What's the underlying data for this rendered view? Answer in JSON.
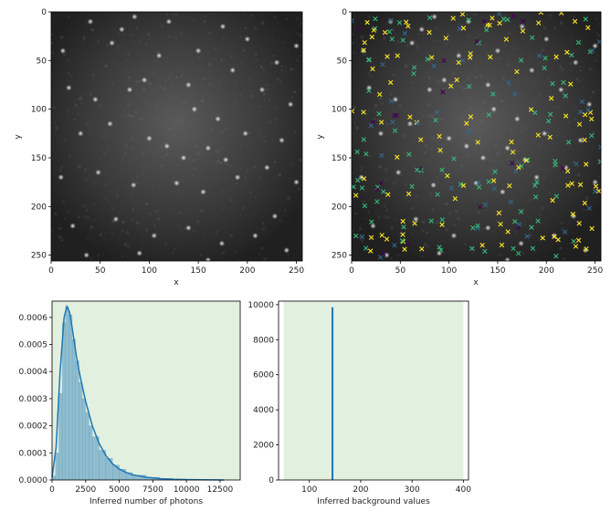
{
  "chart_data": [
    {
      "type": "heatmap",
      "description_id": "microscopy-frame",
      "xlabel": "x",
      "ylabel": "y",
      "xlim": [
        0,
        256
      ],
      "ylim": [
        256,
        0
      ],
      "xticks": [
        "0",
        "50",
        "100",
        "150",
        "200",
        "250"
      ],
      "yticks": [
        "0",
        "50",
        "100",
        "150",
        "200",
        "250"
      ],
      "colormap": "gray",
      "spots": [
        [
          40,
          10
        ],
        [
          62,
          32
        ],
        [
          72,
          18
        ],
        [
          85,
          5
        ],
        [
          110,
          45
        ],
        [
          150,
          40
        ],
        [
          185,
          60
        ],
        [
          200,
          28
        ],
        [
          230,
          52
        ],
        [
          250,
          35
        ],
        [
          18,
          78
        ],
        [
          45,
          90
        ],
        [
          80,
          80
        ],
        [
          95,
          70
        ],
        [
          140,
          75
        ],
        [
          146,
          100
        ],
        [
          170,
          110
        ],
        [
          215,
          80
        ],
        [
          244,
          95
        ],
        [
          30,
          125
        ],
        [
          60,
          115
        ],
        [
          100,
          130
        ],
        [
          118,
          138
        ],
        [
          135,
          150
        ],
        [
          160,
          140
        ],
        [
          178,
          152
        ],
        [
          198,
          125
        ],
        [
          235,
          132
        ],
        [
          10,
          170
        ],
        [
          48,
          165
        ],
        [
          84,
          178
        ],
        [
          128,
          176
        ],
        [
          155,
          185
        ],
        [
          190,
          170
        ],
        [
          220,
          160
        ],
        [
          250,
          175
        ],
        [
          22,
          220
        ],
        [
          66,
          213
        ],
        [
          105,
          230
        ],
        [
          140,
          222
        ],
        [
          174,
          238
        ],
        [
          208,
          230
        ],
        [
          240,
          245
        ],
        [
          36,
          250
        ],
        [
          90,
          248
        ],
        [
          160,
          255
        ],
        [
          120,
          10
        ],
        [
          12,
          40
        ],
        [
          175,
          15
        ],
        [
          228,
          210
        ]
      ]
    },
    {
      "type": "scatter",
      "description_id": "microscopy-frame-with-detections",
      "xlabel": "x",
      "ylabel": "y",
      "xlim": [
        0,
        256
      ],
      "ylim": [
        256,
        0
      ],
      "xticks": [
        "0",
        "50",
        "100",
        "150",
        "200",
        "250"
      ],
      "yticks": [
        "0",
        "50",
        "100",
        "150",
        "200",
        "250"
      ],
      "marker": "x",
      "colors": [
        "#fde725",
        "#35b779",
        "#31688e",
        "#440154"
      ],
      "point_count": 260
    },
    {
      "type": "bar",
      "description_id": "photon-histogram",
      "xlabel": "Inferred number of photons",
      "xlim": [
        0,
        14000
      ],
      "ylim": [
        0,
        0.00066
      ],
      "xticks": [
        "0",
        "2500",
        "5000",
        "7500",
        "10000",
        "12500"
      ],
      "yticks": [
        "0.0000",
        "0.0001",
        "0.0002",
        "0.0003",
        "0.0004",
        "0.0005",
        "0.0006"
      ],
      "shaded_region": [
        0,
        14000
      ],
      "bins": [
        0,
        250,
        500,
        750,
        1000,
        1250,
        1500,
        1750,
        2000,
        2250,
        2500,
        2750,
        3000,
        3500,
        4000,
        4500,
        5000,
        5500,
        6000,
        7000,
        8000,
        9000,
        10000,
        11000,
        12000,
        12500
      ],
      "density": [
        1.5e-05,
        0.0001,
        0.00032,
        0.00058,
        0.00064,
        0.00061,
        0.00052,
        0.00044,
        0.00036,
        0.0003,
        0.00025,
        0.0002,
        0.00016,
        0.00011,
        8e-05,
        5.5e-05,
        4e-05,
        2.8e-05,
        1.8e-05,
        1e-05,
        6e-06,
        4e-06,
        2e-06,
        1e-06,
        5e-07
      ],
      "kde_x": [
        0,
        300,
        600,
        900,
        1100,
        1300,
        1500,
        1800,
        2100,
        2500,
        3000,
        3500,
        4000,
        4500,
        5000,
        5500,
        6000,
        7000,
        8000,
        9000,
        10000,
        11000,
        12000,
        12800
      ],
      "kde_y": [
        1e-05,
        0.00012,
        0.0004,
        0.0006,
        0.00064,
        0.00062,
        0.00056,
        0.00046,
        0.00038,
        0.00029,
        0.0002,
        0.000135,
        9e-05,
        6e-05,
        4e-05,
        2.8e-05,
        1.9e-05,
        1e-05,
        5e-06,
        2.5e-06,
        1.2e-06,
        6e-07,
        3e-07,
        1e-07
      ],
      "series_color": "#1f77b4",
      "shade_color": "#e2f0e0"
    },
    {
      "type": "bar",
      "description_id": "background-histogram",
      "xlabel": "Inferred background values",
      "xlim": [
        40,
        410
      ],
      "ylim": [
        0,
        10200
      ],
      "xticks": [
        "100",
        "200",
        "300",
        "400"
      ],
      "xtick_values": [
        100,
        200,
        300,
        400
      ],
      "yticks": [
        "0",
        "2000",
        "4000",
        "6000",
        "8000",
        "10000"
      ],
      "ytick_values": [
        0,
        2000,
        4000,
        6000,
        8000,
        10000
      ],
      "shaded_region": [
        50,
        400
      ],
      "spike_x": 145,
      "spike_height": 9850,
      "series_color": "#1f77b4",
      "shade_color": "#e2f0e0"
    }
  ]
}
